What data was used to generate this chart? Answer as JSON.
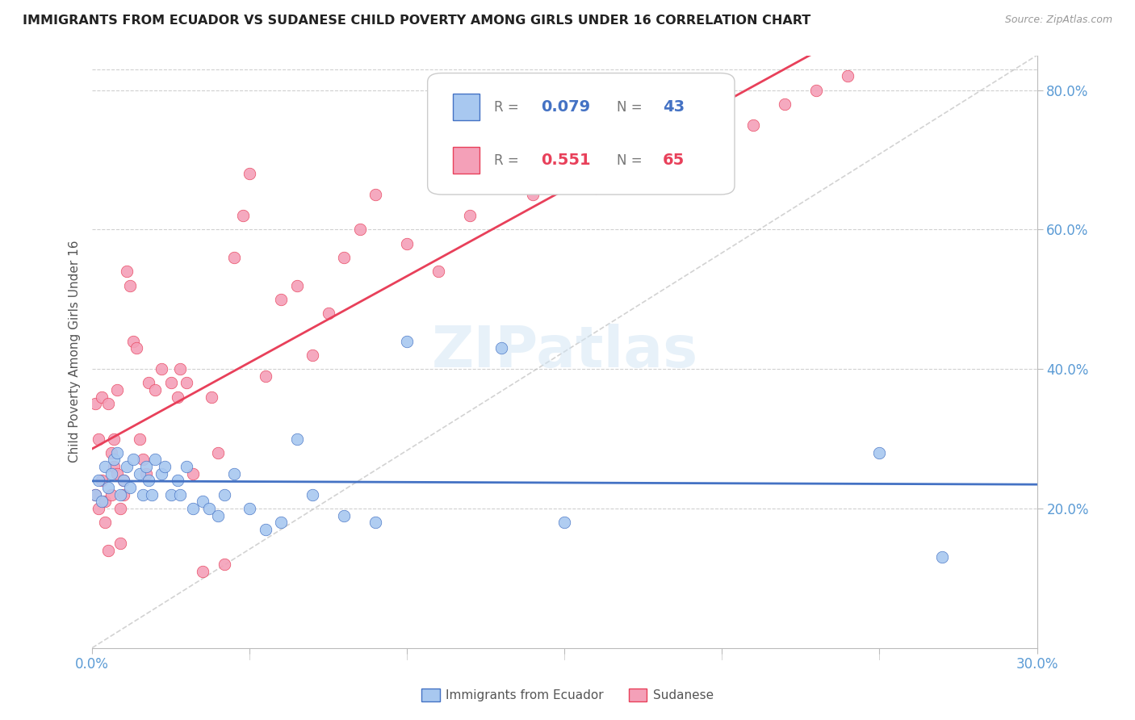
{
  "title": "IMMIGRANTS FROM ECUADOR VS SUDANESE CHILD POVERTY AMONG GIRLS UNDER 16 CORRELATION CHART",
  "source": "Source: ZipAtlas.com",
  "ylabel": "Child Poverty Among Girls Under 16",
  "x_min": 0.0,
  "x_max": 0.3,
  "y_min": 0.0,
  "y_max": 0.85,
  "x_ticks": [
    0.0,
    0.05,
    0.1,
    0.15,
    0.2,
    0.25,
    0.3
  ],
  "y_ticks_right": [
    0.2,
    0.4,
    0.6,
    0.8
  ],
  "y_tick_labels_right": [
    "20.0%",
    "40.0%",
    "60.0%",
    "80.0%"
  ],
  "color_ecuador": "#a8c8f0",
  "color_sudanese": "#f4a0b8",
  "color_ecuador_line": "#4472c4",
  "color_sudanese_line": "#e8405a",
  "color_diagonal": "#c0c0c0",
  "background": "#ffffff",
  "grid_color": "#d0d0d0",
  "ecuador_x": [
    0.001,
    0.002,
    0.003,
    0.004,
    0.005,
    0.006,
    0.007,
    0.008,
    0.009,
    0.01,
    0.011,
    0.012,
    0.013,
    0.015,
    0.016,
    0.017,
    0.018,
    0.019,
    0.02,
    0.022,
    0.023,
    0.025,
    0.027,
    0.028,
    0.03,
    0.032,
    0.035,
    0.037,
    0.04,
    0.042,
    0.045,
    0.05,
    0.055,
    0.06,
    0.065,
    0.07,
    0.08,
    0.09,
    0.1,
    0.13,
    0.15,
    0.25,
    0.27
  ],
  "ecuador_y": [
    0.22,
    0.24,
    0.21,
    0.26,
    0.23,
    0.25,
    0.27,
    0.28,
    0.22,
    0.24,
    0.26,
    0.23,
    0.27,
    0.25,
    0.22,
    0.26,
    0.24,
    0.22,
    0.27,
    0.25,
    0.26,
    0.22,
    0.24,
    0.22,
    0.26,
    0.2,
    0.21,
    0.2,
    0.19,
    0.22,
    0.25,
    0.2,
    0.17,
    0.18,
    0.3,
    0.22,
    0.19,
    0.18,
    0.44,
    0.43,
    0.18,
    0.28,
    0.13
  ],
  "sudanese_x": [
    0.001,
    0.001,
    0.002,
    0.002,
    0.003,
    0.003,
    0.004,
    0.004,
    0.005,
    0.005,
    0.006,
    0.006,
    0.007,
    0.007,
    0.008,
    0.008,
    0.009,
    0.009,
    0.01,
    0.01,
    0.011,
    0.012,
    0.013,
    0.014,
    0.015,
    0.016,
    0.017,
    0.018,
    0.02,
    0.022,
    0.025,
    0.027,
    0.028,
    0.03,
    0.032,
    0.035,
    0.038,
    0.04,
    0.042,
    0.045,
    0.048,
    0.05,
    0.055,
    0.06,
    0.065,
    0.07,
    0.075,
    0.08,
    0.085,
    0.09,
    0.1,
    0.11,
    0.12,
    0.13,
    0.14,
    0.15,
    0.16,
    0.17,
    0.18,
    0.19,
    0.2,
    0.21,
    0.22,
    0.23,
    0.24
  ],
  "sudanese_y": [
    0.22,
    0.35,
    0.2,
    0.3,
    0.24,
    0.36,
    0.21,
    0.18,
    0.14,
    0.35,
    0.28,
    0.22,
    0.26,
    0.3,
    0.25,
    0.37,
    0.2,
    0.15,
    0.24,
    0.22,
    0.54,
    0.52,
    0.44,
    0.43,
    0.3,
    0.27,
    0.25,
    0.38,
    0.37,
    0.4,
    0.38,
    0.36,
    0.4,
    0.38,
    0.25,
    0.11,
    0.36,
    0.28,
    0.12,
    0.56,
    0.62,
    0.68,
    0.39,
    0.5,
    0.52,
    0.42,
    0.48,
    0.56,
    0.6,
    0.65,
    0.58,
    0.54,
    0.62,
    0.7,
    0.65,
    0.72,
    0.66,
    0.74,
    0.68,
    0.76,
    0.71,
    0.75,
    0.78,
    0.8,
    0.82
  ]
}
